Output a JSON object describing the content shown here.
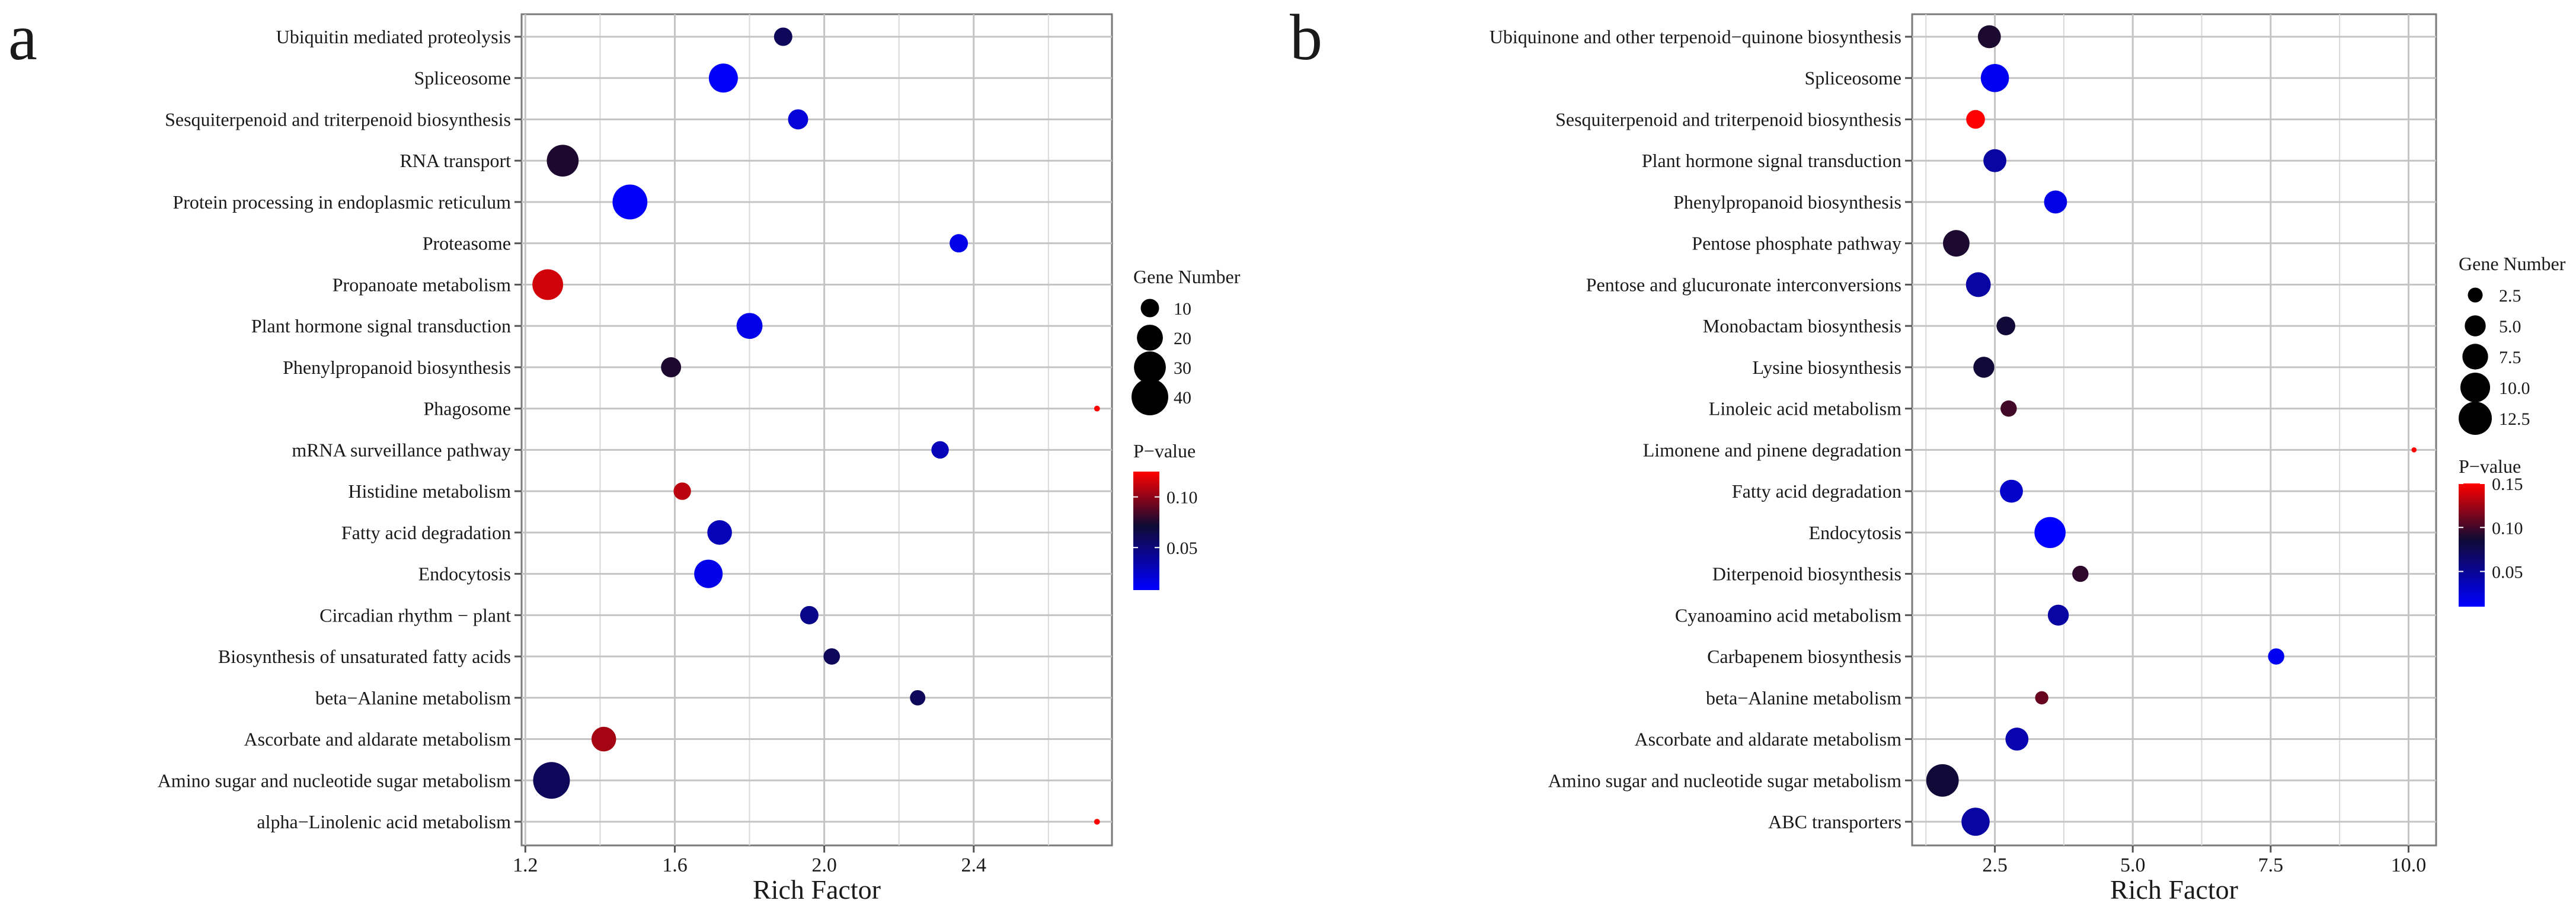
{
  "panels": [
    {
      "letter": "a"
    },
    {
      "letter": "b"
    }
  ],
  "chart_data": [
    {
      "type": "scatter",
      "panel_label": "a",
      "xlabel": "Rich Factor",
      "ylabel": "",
      "xlim": [
        1.19,
        2.77
      ],
      "xticks": [
        1.2,
        1.6,
        2.0,
        2.4
      ],
      "xtick_labels": [
        "1.2",
        "1.6",
        "2.0",
        "2.4"
      ],
      "grid": true,
      "size_legend": {
        "title": "Gene Number",
        "values": [
          10,
          20,
          30,
          40
        ],
        "labels": [
          "10",
          "20",
          "30",
          "40"
        ]
      },
      "color_legend": {
        "title": "P−value",
        "range": [
          0.008,
          0.125
        ],
        "ticks": [
          0.05,
          0.1
        ],
        "labels": [
          "0.05",
          "0.10"
        ],
        "low_color": "#0000ff",
        "high_color": "#ff0000"
      },
      "points": [
        {
          "term": "Ubiquitin mediated proteolysis",
          "rich_factor": 1.89,
          "gene_number": 10,
          "p_value": 0.06
        },
        {
          "term": "Spliceosome",
          "rich_factor": 1.73,
          "gene_number": 25,
          "p_value": 0.01
        },
        {
          "term": "Sesquiterpenoid and triterpenoid biosynthesis",
          "rich_factor": 1.93,
          "gene_number": 12,
          "p_value": 0.02
        },
        {
          "term": "RNA transport",
          "rich_factor": 1.3,
          "gene_number": 30,
          "p_value": 0.075
        },
        {
          "term": "Protein processing in endoplasmic reticulum",
          "rich_factor": 1.48,
          "gene_number": 36,
          "p_value": 0.01
        },
        {
          "term": "Proteasome",
          "rich_factor": 2.36,
          "gene_number": 10,
          "p_value": 0.015
        },
        {
          "term": "Propanoate metabolism",
          "rich_factor": 1.26,
          "gene_number": 28,
          "p_value": 0.115
        },
        {
          "term": "Plant hormone signal transduction",
          "rich_factor": 1.8,
          "gene_number": 20,
          "p_value": 0.015
        },
        {
          "term": "Phenylpropanoid biosynthesis",
          "rich_factor": 1.59,
          "gene_number": 12,
          "p_value": 0.075
        },
        {
          "term": "Phagosome",
          "rich_factor": 2.73,
          "gene_number": 1,
          "p_value": 0.125
        },
        {
          "term": "mRNA surveillance pathway",
          "rich_factor": 2.31,
          "gene_number": 9,
          "p_value": 0.03
        },
        {
          "term": "Histidine metabolism",
          "rich_factor": 1.62,
          "gene_number": 9,
          "p_value": 0.11
        },
        {
          "term": "Fatty acid degradation",
          "rich_factor": 1.72,
          "gene_number": 18,
          "p_value": 0.03
        },
        {
          "term": "Endocytosis",
          "rich_factor": 1.69,
          "gene_number": 24,
          "p_value": 0.015
        },
        {
          "term": "Circadian rhythm − plant",
          "rich_factor": 1.96,
          "gene_number": 10,
          "p_value": 0.045
        },
        {
          "term": "Biosynthesis of unsaturated fatty acids",
          "rich_factor": 2.02,
          "gene_number": 8,
          "p_value": 0.06
        },
        {
          "term": "beta−Alanine metabolism",
          "rich_factor": 2.25,
          "gene_number": 7,
          "p_value": 0.06
        },
        {
          "term": "Ascorbate and aldarate metabolism",
          "rich_factor": 1.41,
          "gene_number": 18,
          "p_value": 0.105
        },
        {
          "term": "Amino sugar and nucleotide sugar metabolism",
          "rich_factor": 1.27,
          "gene_number": 40,
          "p_value": 0.06
        },
        {
          "term": "alpha−Linolenic acid metabolism",
          "rich_factor": 2.73,
          "gene_number": 1,
          "p_value": 0.125
        }
      ]
    },
    {
      "type": "scatter",
      "panel_label": "b",
      "xlabel": "Rich Factor",
      "ylabel": "",
      "xlim": [
        1.0,
        10.5
      ],
      "xticks": [
        2.5,
        5.0,
        7.5,
        10.0
      ],
      "xtick_labels": [
        "2.5",
        "5.0",
        "7.5",
        "10.0"
      ],
      "grid": true,
      "size_legend": {
        "title": "Gene Number",
        "values": [
          2.5,
          5.0,
          7.5,
          10.0,
          12.5
        ],
        "labels": [
          "2.5",
          "5.0",
          "7.5",
          "10.0",
          "12.5"
        ]
      },
      "color_legend": {
        "title": "P−value",
        "range": [
          0.01,
          0.15
        ],
        "ticks": [
          0.05,
          0.1,
          0.15
        ],
        "labels": [
          "0.05",
          "0.10",
          "0.15"
        ],
        "low_color": "#0000ff",
        "high_color": "#ff0000"
      },
      "points": [
        {
          "term": "Ubiquinone and other terpenoid−quinone biosynthesis",
          "rich_factor": 2.4,
          "gene_number": 6,
          "p_value": 0.09
        },
        {
          "term": "Spliceosome",
          "rich_factor": 2.5,
          "gene_number": 9,
          "p_value": 0.015
        },
        {
          "term": "Sesquiterpenoid and triterpenoid biosynthesis",
          "rich_factor": 2.15,
          "gene_number": 4,
          "p_value": 0.15
        },
        {
          "term": "Plant hormone signal transduction",
          "rich_factor": 2.5,
          "gene_number": 6,
          "p_value": 0.045
        },
        {
          "term": "Phenylpropanoid biosynthesis",
          "rich_factor": 3.6,
          "gene_number": 6,
          "p_value": 0.02
        },
        {
          "term": "Pentose phosphate pathway",
          "rich_factor": 1.8,
          "gene_number": 8,
          "p_value": 0.09
        },
        {
          "term": "Pentose and glucuronate interconversions",
          "rich_factor": 2.2,
          "gene_number": 7,
          "p_value": 0.045
        },
        {
          "term": "Monobactam biosynthesis",
          "rich_factor": 2.7,
          "gene_number": 4,
          "p_value": 0.085
        },
        {
          "term": "Lysine biosynthesis",
          "rich_factor": 2.3,
          "gene_number": 5,
          "p_value": 0.085
        },
        {
          "term": "Linoleic acid metabolism",
          "rich_factor": 2.75,
          "gene_number": 3,
          "p_value": 0.1
        },
        {
          "term": "Limonene and pinene degradation",
          "rich_factor": 10.1,
          "gene_number": 0.3,
          "p_value": 0.15
        },
        {
          "term": "Fatty acid degradation",
          "rich_factor": 2.8,
          "gene_number": 6,
          "p_value": 0.03
        },
        {
          "term": "Endocytosis",
          "rich_factor": 3.5,
          "gene_number": 11,
          "p_value": 0.01
        },
        {
          "term": "Diterpenoid biosynthesis",
          "rich_factor": 4.05,
          "gene_number": 3,
          "p_value": 0.095
        },
        {
          "term": "Cyanoamino acid metabolism",
          "rich_factor": 3.65,
          "gene_number": 5,
          "p_value": 0.045
        },
        {
          "term": "Carbapenem biosynthesis",
          "rich_factor": 7.6,
          "gene_number": 3,
          "p_value": 0.015
        },
        {
          "term": "beta−Alanine metabolism",
          "rich_factor": 3.35,
          "gene_number": 2,
          "p_value": 0.11
        },
        {
          "term": "Ascorbate and aldarate metabolism",
          "rich_factor": 2.9,
          "gene_number": 6,
          "p_value": 0.04
        },
        {
          "term": "Amino sugar and nucleotide sugar metabolism",
          "rich_factor": 1.55,
          "gene_number": 12,
          "p_value": 0.085
        },
        {
          "term": "ABC transporters",
          "rich_factor": 2.15,
          "gene_number": 9,
          "p_value": 0.045
        }
      ]
    }
  ]
}
